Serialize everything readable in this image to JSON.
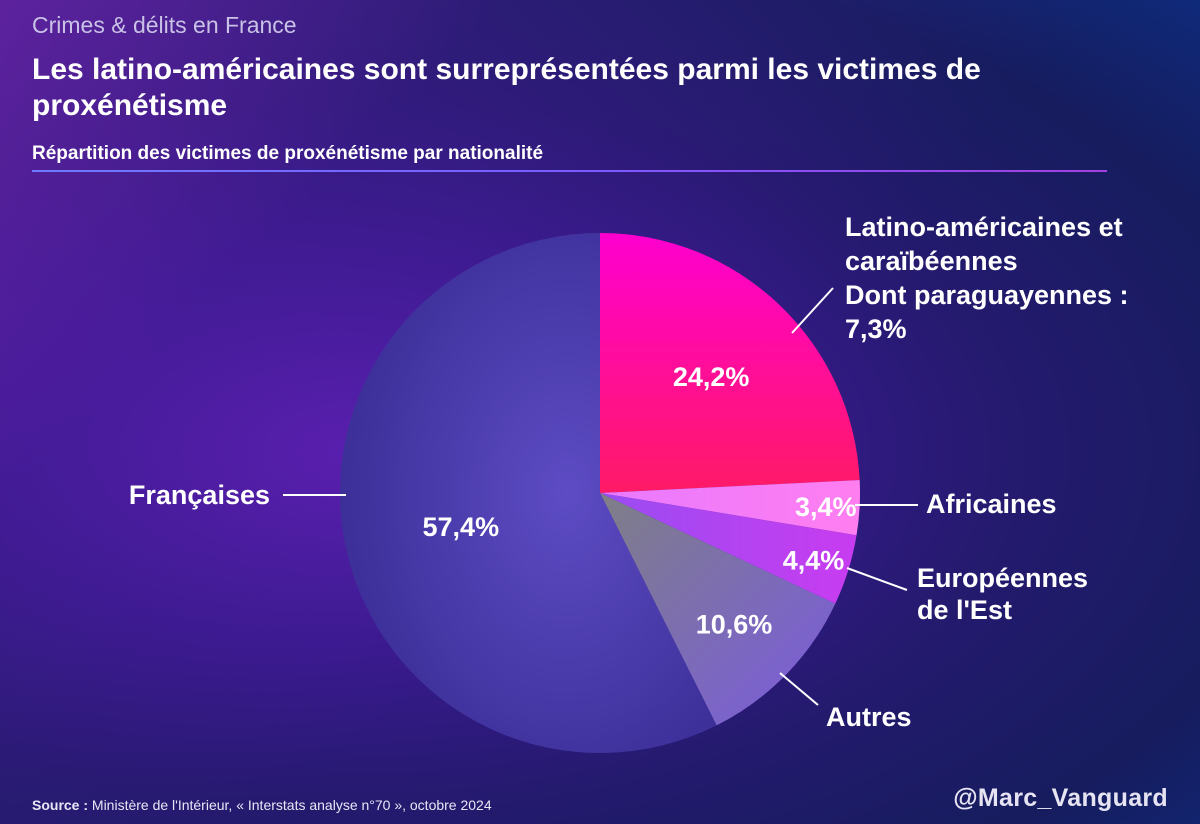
{
  "kicker": "Crimes & délits en France",
  "title": "Les latino-américaines sont surreprésentées parmi les victimes de proxénétisme",
  "subtitle": "Répartition des victimes de proxénétisme par nationalité",
  "source_label": "Source :",
  "source_text": "Ministère de l'Intérieur, « Interstats analyse n°70 », octobre 2024",
  "handle": "@Marc_Vanguard",
  "colors": {
    "latino": "#ff1a8c",
    "africaines": "#f37cff",
    "europeennes": "#b544f0",
    "autres": "#8c6fd4",
    "francaises": "#4a3fb0"
  },
  "chart_data": {
    "type": "pie",
    "title": "Répartition des victimes de proxénétisme par nationalité",
    "slices": [
      {
        "key": "latino",
        "name": "Latino-américaines et caraïbéennes",
        "value": 24.2,
        "value_label": "24,2%",
        "label_lines": [
          "Latino-américaines et",
          "caraïbéennes",
          "Dont paraguayennes :",
          "7,3%"
        ]
      },
      {
        "key": "africaines",
        "name": "Africaines",
        "value": 3.4,
        "value_label": "3,4%",
        "label_lines": [
          "Africaines"
        ]
      },
      {
        "key": "europeennes",
        "name": "Européennes de l'Est",
        "value": 4.4,
        "value_label": "4,4%",
        "label_lines": [
          "Européennes",
          "de l'Est"
        ]
      },
      {
        "key": "autres",
        "name": "Autres",
        "value": 10.6,
        "value_label": "10,6%",
        "label_lines": [
          "Autres"
        ]
      },
      {
        "key": "francaises",
        "name": "Françaises",
        "value": 57.4,
        "value_label": "57,4%",
        "label_lines": [
          "Françaises"
        ]
      }
    ]
  }
}
